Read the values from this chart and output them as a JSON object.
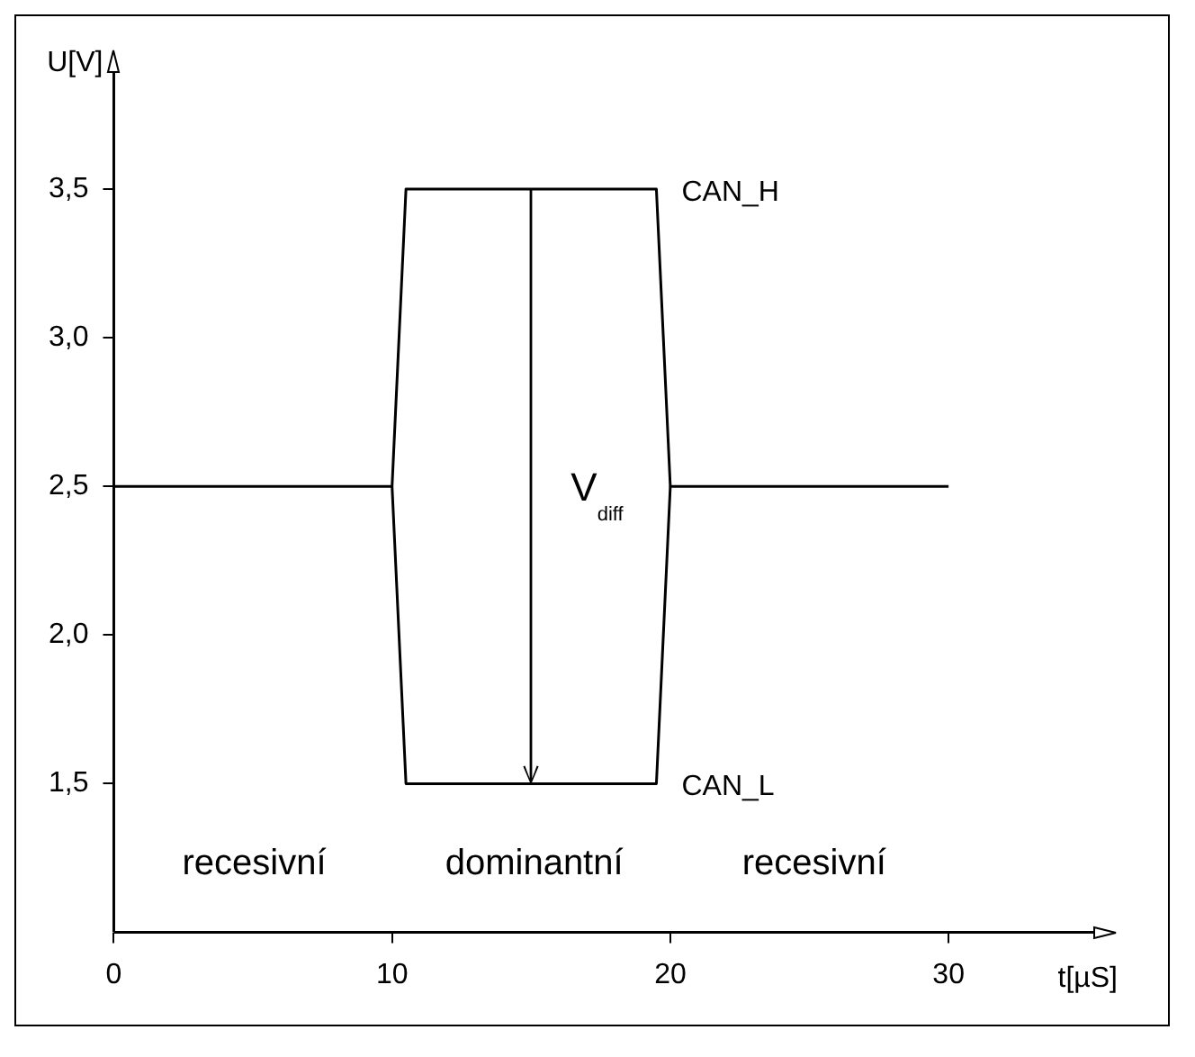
{
  "chart_data": {
    "type": "line",
    "xlabel": "t[µS]",
    "ylabel": "U[V]",
    "series": [
      {
        "name": "CAN_H",
        "color": "#000000",
        "x": [
          0,
          10,
          10.5,
          19.5,
          20,
          30
        ],
        "values": [
          2.5,
          2.5,
          3.5,
          3.5,
          2.5,
          2.5
        ]
      },
      {
        "name": "CAN_L",
        "color": "#000000",
        "x": [
          10,
          10.5,
          19.5,
          20
        ],
        "values": [
          2.5,
          1.5,
          1.5,
          2.5
        ]
      }
    ],
    "xlim": [
      0,
      35.3
    ],
    "xticks": [
      0,
      10,
      20,
      30
    ],
    "ylim": [
      1.0,
      3.9
    ],
    "yticks": [
      {
        "value": 1.5,
        "label": "1,5"
      },
      {
        "value": 2.0,
        "label": "2,0"
      },
      {
        "value": 2.5,
        "label": "2,5"
      },
      {
        "value": 3.0,
        "label": "3,0"
      },
      {
        "value": 3.5,
        "label": "3,5"
      }
    ],
    "annotations": [
      "recesivní",
      "dominantní",
      "recesivní",
      "V$_{diff}$"
    ],
    "grid": false,
    "legend": false,
    "marker": "none",
    "line_style": "solid"
  }
}
